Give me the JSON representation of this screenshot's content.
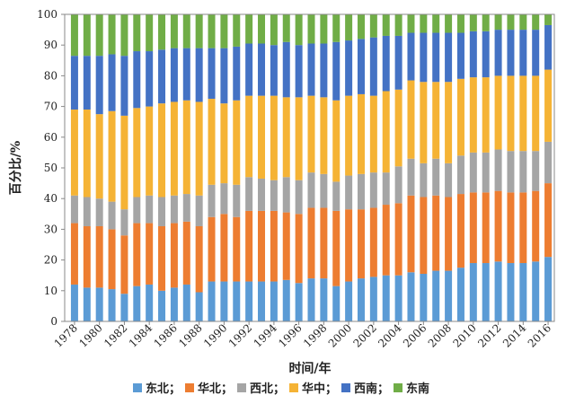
{
  "chart_data": {
    "type": "bar",
    "stacked": true,
    "title": "",
    "xlabel": "时间/年",
    "ylabel": "百分比/%",
    "ylim": [
      0,
      100
    ],
    "yticks": [
      0,
      10,
      20,
      30,
      40,
      50,
      60,
      70,
      80,
      90,
      100
    ],
    "grid": false,
    "legend_position": "bottom",
    "categories": [
      1978,
      1979,
      1980,
      1981,
      1982,
      1983,
      1984,
      1985,
      1986,
      1987,
      1988,
      1989,
      1990,
      1991,
      1992,
      1993,
      1994,
      1995,
      1996,
      1997,
      1998,
      1999,
      2000,
      2001,
      2002,
      2003,
      2004,
      2005,
      2006,
      2007,
      2008,
      2009,
      2010,
      2011,
      2012,
      2013,
      2014,
      2015,
      2016
    ],
    "xtick_labels": [
      "1978",
      "1980",
      "1982",
      "1984",
      "1986",
      "1988",
      "1990",
      "1992",
      "1994",
      "1996",
      "1998",
      "2000",
      "2002",
      "2004",
      "2006",
      "2008",
      "2010",
      "2012",
      "2014",
      "2016"
    ],
    "series": [
      {
        "name": "东北；",
        "color": "#5b9bd5",
        "values": [
          12,
          11,
          11,
          10.5,
          9,
          11.5,
          12,
          10,
          11,
          12,
          9.5,
          13,
          13,
          13,
          13,
          13,
          13,
          13.5,
          12.5,
          14,
          14,
          11.5,
          13,
          14,
          14.5,
          15,
          15,
          16,
          15.5,
          16.5,
          16.5,
          17.5,
          19,
          19,
          19.5,
          19,
          19,
          19.5,
          21
        ]
      },
      {
        "name": "华北；",
        "color": "#ed7d31",
        "values": [
          20,
          20,
          20,
          19.5,
          19,
          20.5,
          20,
          21,
          21,
          20.5,
          21.5,
          21,
          22,
          21,
          23,
          23,
          23,
          22,
          22.5,
          23,
          23,
          24.5,
          23.5,
          22.5,
          22.5,
          23,
          23.5,
          25,
          25,
          24.5,
          24,
          24,
          23,
          23,
          23,
          23,
          23,
          23,
          24
        ]
      },
      {
        "name": "西北；",
        "color": "#a5a5a5",
        "values": [
          9,
          9.5,
          9,
          9,
          8.5,
          8.5,
          9,
          9.5,
          9,
          9,
          10,
          10.5,
          10,
          10.5,
          11,
          10.5,
          10,
          11.5,
          11,
          11.5,
          11,
          9.5,
          11,
          11.5,
          11.5,
          10.5,
          12,
          12,
          11,
          12,
          11,
          12.5,
          13,
          13,
          13.5,
          13.5,
          13.5,
          13,
          13.5
        ]
      },
      {
        "name": "华中；",
        "color": "#f5b335",
        "values": [
          28,
          28.5,
          27.5,
          29.5,
          30.5,
          29,
          29,
          30.5,
          30.5,
          30.5,
          30.5,
          28,
          26,
          27.5,
          26.5,
          27,
          27.5,
          26,
          27,
          25,
          25,
          26.5,
          26,
          26,
          25,
          26.5,
          25,
          25.5,
          26.5,
          25,
          26.5,
          25,
          24.5,
          24.5,
          24,
          24.5,
          24.5,
          24.5,
          23.5
        ]
      },
      {
        "name": "西南；",
        "color": "#4472c4",
        "values": [
          17.5,
          17.5,
          19,
          18.5,
          19.5,
          18.5,
          18,
          17.5,
          17.5,
          17,
          17.5,
          16.5,
          18,
          17.5,
          17,
          17,
          16.5,
          18,
          17,
          17,
          17.5,
          19,
          18,
          18,
          19,
          18,
          17.5,
          15.5,
          16,
          16,
          16,
          15,
          15,
          15,
          15,
          15,
          15,
          15,
          14.5
        ]
      },
      {
        "name": "东南",
        "color": "#70ad47",
        "values": [
          13.5,
          13.5,
          13.5,
          13,
          13.5,
          12,
          12,
          11.5,
          11,
          11,
          11,
          11,
          11,
          10.5,
          9.5,
          9.5,
          10,
          9,
          10,
          9.5,
          9.5,
          9,
          8.5,
          8,
          7.5,
          7,
          7,
          6,
          6,
          6,
          6,
          6,
          5.5,
          5.5,
          5,
          5,
          5,
          5,
          3.5
        ]
      }
    ]
  }
}
